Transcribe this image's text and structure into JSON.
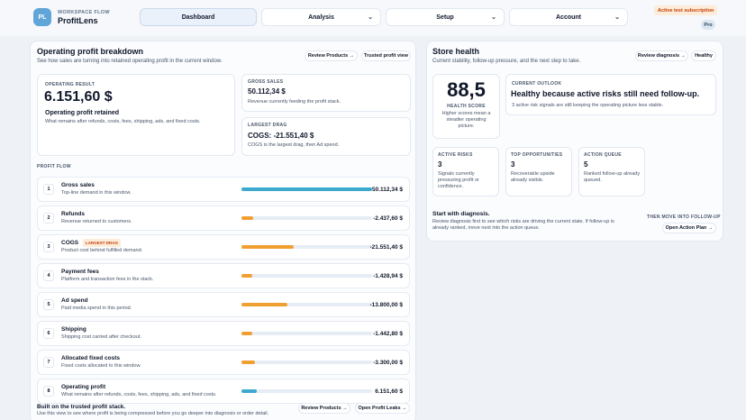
{
  "brand": {
    "kicker": "WORKSPACE FLOW",
    "name": "ProfitLens",
    "logo": "PL"
  },
  "nav": {
    "dashboard": "Dashboard",
    "analysis": "Analysis",
    "setup": "Setup",
    "account": "Account"
  },
  "badges": {
    "trial": "Active test subscription",
    "pro": "Pro"
  },
  "breakdown": {
    "title": "Operating profit breakdown",
    "subtitle": "See how sales are turning into retained operating profit in the current window.",
    "review_products": "Review Products →",
    "trusted_view": "Trusted profit view",
    "result": {
      "label": "OPERATING RESULT",
      "value": "6.151,60 $",
      "name": "Operating profit retained",
      "desc": "What remains after refunds, costs, fees, shipping, ads, and fixed costs."
    },
    "gross": {
      "label": "GROSS SALES",
      "value": "50.112,34 $",
      "desc": "Revenue currently feeding the profit stack."
    },
    "drag": {
      "label": "LARGEST DRAG",
      "value": "COGS: -21.551,40 $",
      "desc": "COGS is the largest drag, then Ad spend."
    },
    "flow_label": "PROFIT FLOW",
    "rows": [
      {
        "n": "1",
        "name": "Gross sales",
        "desc": "Top-line demand in this window.",
        "value": "50.112,34 $",
        "fill": 1.0,
        "color": "#3ea9cf"
      },
      {
        "n": "2",
        "name": "Refunds",
        "desc": "Revenue returned to customers.",
        "value": "-2.437,60 $",
        "fill": 0.09,
        "color": "#f0a030"
      },
      {
        "n": "3",
        "name": "COGS",
        "tag": "LARGEST DRAG",
        "desc": "Product cost behind fulfilled demand.",
        "value": "-21.551,40 $",
        "fill": 0.4,
        "color": "#f0a030"
      },
      {
        "n": "4",
        "name": "Payment fees",
        "desc": "Platform and transaction fees in the stack.",
        "value": "-1.428,94 $",
        "fill": 0.08,
        "color": "#f0a030"
      },
      {
        "n": "5",
        "name": "Ad spend",
        "desc": "Paid media spend in this period.",
        "value": "-13.800,00 $",
        "fill": 0.35,
        "color": "#f0a030"
      },
      {
        "n": "6",
        "name": "Shipping",
        "desc": "Shipping cost carried after checkout.",
        "value": "-1.442,80 $",
        "fill": 0.08,
        "color": "#f0a030"
      },
      {
        "n": "7",
        "name": "Allocated fixed costs",
        "desc": "Fixed costs allocated to this window.",
        "value": "-3.300,00 $",
        "fill": 0.1,
        "color": "#f0a030"
      },
      {
        "n": "8",
        "name": "Operating profit",
        "desc": "What remains after refunds, costs, fees, shipping, ads, and fixed costs.",
        "value": "6.151,60 $",
        "fill": 0.12,
        "color": "#3ea9cf"
      }
    ],
    "footer_title": "Built on the trusted profit stack.",
    "footer_desc": "Use this view to see where profit is being compressed before you go deeper into diagnosis or order detail.",
    "footer_review": "Review Products →",
    "footer_leaks": "Open Profit Leaks →"
  },
  "health": {
    "title": "Store health",
    "subtitle": "Current stability, follow-up pressure, and the next step to take.",
    "review_diag": "Review diagnosis →",
    "status": "Healthy",
    "score": "88,5",
    "score_label": "HEALTH SCORE",
    "score_desc": "Higher scores mean a steadier operating picture.",
    "outlook_label": "CURRENT OUTLOOK",
    "outlook_title": "Healthy because active risks still need follow-up.",
    "outlook_desc": "3 active risk signals are still keeping the operating picture less stable.",
    "risks": {
      "label": "ACTIVE RISKS",
      "value": "3",
      "desc": "Signals currently pressuring profit or confidence."
    },
    "opps": {
      "label": "TOP OPPORTUNITIES",
      "value": "3",
      "desc": "Recoverable upside already visible."
    },
    "queue": {
      "label": "ACTION QUEUE",
      "value": "5",
      "desc": "Ranked follow-up already queued."
    },
    "start_title": "Start with diagnosis.",
    "start_desc": "Review diagnosis first to see which risks are driving the current state. If follow-up is already ranked, move next into the action queue.",
    "then_label": "THEN MOVE INTO FOLLOW-UP",
    "action_plan": "Open Action Plan →"
  }
}
